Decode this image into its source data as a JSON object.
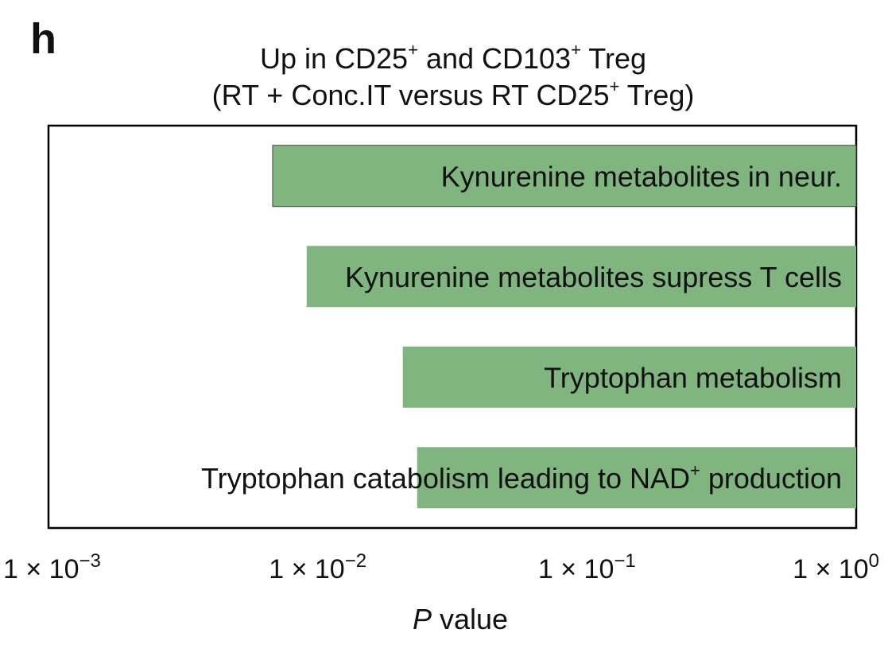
{
  "panel_label": "h",
  "chart_data": {
    "type": "bar",
    "orientation": "horizontal",
    "title_parts": [
      [
        "Up in CD25",
        "+",
        " and CD103",
        "+",
        " Treg"
      ],
      [
        "(RT + Conc.IT versus RT CD25",
        "+",
        " Treg)"
      ]
    ],
    "xlabel_italic": "P",
    "xlabel_rest": " value",
    "x_scale": "log10",
    "xlim": [
      0.001,
      1
    ],
    "bars_extend_from": 1,
    "xticks": [
      {
        "value": 0.001,
        "mantissa": "1 × 10",
        "exponent": "−3"
      },
      {
        "value": 0.01,
        "mantissa": "1 × 10",
        "exponent": "−2"
      },
      {
        "value": 0.1,
        "mantissa": "1 × 10",
        "exponent": "−1"
      },
      {
        "value": 1,
        "mantissa": "1 × 10",
        "exponent": "0"
      }
    ],
    "categories": [
      {
        "label": "Kynurenine metabolites in neur.",
        "sup": "",
        "label_tail": ""
      },
      {
        "label": "Kynurenine metabolites supress T cells",
        "sup": "",
        "label_tail": ""
      },
      {
        "label": "Tryptophan metabolism",
        "sup": "",
        "label_tail": ""
      },
      {
        "label": "Tryptophan catabolism leading to NAD",
        "sup": "+",
        "label_tail": " production"
      }
    ],
    "values": [
      0.0068,
      0.0091,
      0.0207,
      0.0234
    ],
    "bar_color": "#80b580",
    "grid": false,
    "legend": "none"
  }
}
